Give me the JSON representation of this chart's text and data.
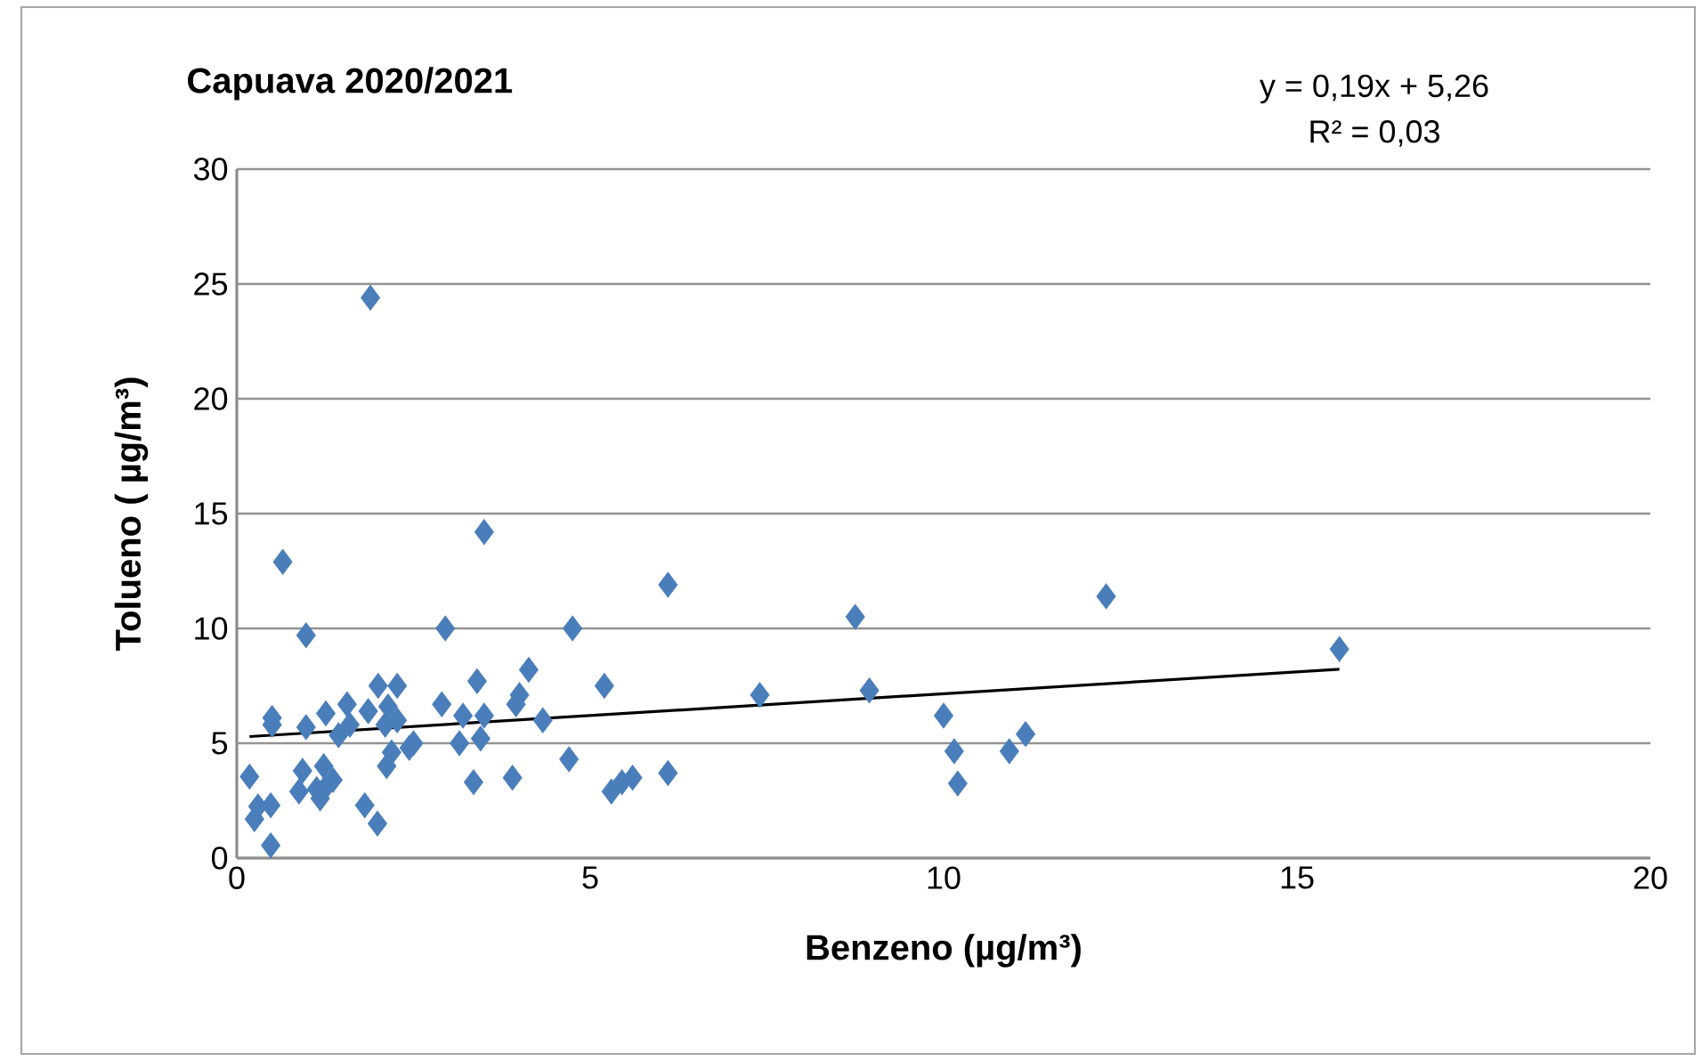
{
  "chart_data": {
    "type": "scatter",
    "title": "Capuava 2020/2021",
    "xlabel": "Benzeno (µg/m³)",
    "ylabel": "Tolueno ( µg/m³)",
    "annotations": [
      "y = 0,19x + 5,26",
      "R² = 0,03"
    ],
    "xlim": [
      0,
      20
    ],
    "ylim": [
      0,
      30
    ],
    "xticks": [
      0,
      5,
      10,
      15,
      20
    ],
    "yticks": [
      0,
      5,
      10,
      15,
      20,
      25,
      30
    ],
    "grid": "y",
    "series": [
      {
        "color": "#4a7ebb",
        "marker": "diamond",
        "x": [
          1.89,
          0.65,
          3.5,
          6.1,
          12.3,
          15.6,
          8.75,
          2.95,
          4.75,
          0.98,
          8.95,
          7.4,
          5.2,
          10.0,
          10.15,
          10.2,
          10.93,
          11.16,
          6.1,
          4.7,
          5.3,
          5.45,
          5.6,
          4.33,
          3.4,
          4.13,
          2.9,
          4.0,
          3.95,
          3.2,
          3.5,
          3.15,
          3.45,
          3.9,
          3.35,
          0.5,
          0.5,
          0.98,
          1.26,
          1.56,
          2.0,
          2.27,
          1.86,
          2.14,
          2.27,
          1.44,
          0.18,
          0.3,
          0.48,
          0.25,
          0.48,
          0.93,
          0.88,
          1.23,
          1.26,
          1.13,
          1.36,
          1.18,
          1.81,
          1.99,
          2.19,
          2.44,
          2.12,
          1.6,
          2.1,
          2.5
        ],
        "values": [
          24.4,
          12.9,
          14.2,
          11.9,
          11.4,
          9.1,
          10.5,
          10.0,
          10.0,
          9.7,
          7.3,
          7.1,
          7.5,
          6.2,
          4.65,
          3.25,
          4.65,
          5.4,
          3.7,
          4.3,
          2.9,
          3.3,
          3.5,
          6.0,
          7.7,
          8.2,
          6.7,
          7.1,
          6.7,
          6.2,
          6.2,
          5.0,
          5.2,
          3.5,
          3.3,
          6.1,
          5.8,
          5.7,
          6.3,
          6.7,
          7.5,
          7.5,
          6.4,
          6.6,
          6.0,
          5.35,
          3.55,
          2.25,
          2.3,
          1.7,
          0.55,
          3.8,
          2.9,
          4.0,
          3.1,
          3.0,
          3.4,
          2.6,
          2.3,
          1.5,
          4.6,
          4.8,
          4.0,
          5.8,
          5.8,
          5.0
        ]
      },
      {
        "type": "line",
        "color": "#000000",
        "marker": "none",
        "line_style": "solid",
        "x": [
          0.18,
          15.6
        ],
        "values": [
          5.29,
          8.22
        ]
      }
    ]
  }
}
